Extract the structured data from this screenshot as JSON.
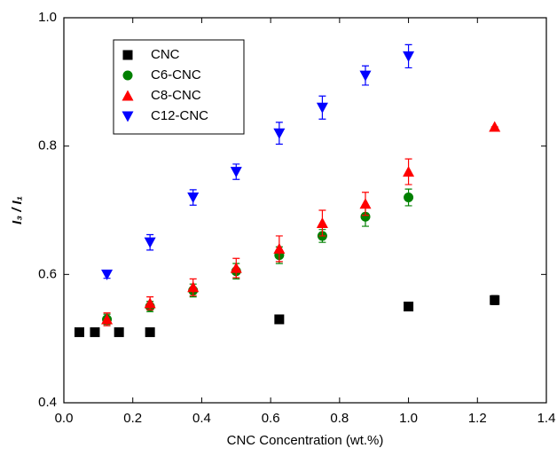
{
  "chart_data": {
    "type": "scatter",
    "xlabel": "CNC Concentration (wt.%)",
    "ylabel": "I₃ / I₁",
    "xlim": [
      0,
      1.4
    ],
    "ylim": [
      0.4,
      1.0
    ],
    "xticks": [
      {
        "value": 0,
        "label": "0.0"
      },
      0.2,
      0.4,
      0.6,
      0.8,
      {
        "value": 1,
        "label": "1.0"
      },
      1.2,
      1.4
    ],
    "yticks": [
      0.4,
      0.6,
      0.8,
      {
        "value": 1,
        "label": "1.0"
      }
    ],
    "legend": "upper-left",
    "series": [
      {
        "name": "CNC",
        "color": "#000000",
        "marker": "square",
        "x": [
          0.045,
          0.09,
          0.16,
          0.25,
          0.625,
          1.0,
          1.25
        ],
        "values": [
          0.51,
          0.51,
          0.51,
          0.51,
          0.53,
          0.55,
          0.56
        ],
        "errors": [
          0.003,
          0.003,
          0.003,
          0.003,
          0.005,
          0.004,
          0.007
        ]
      },
      {
        "name": "C6-CNC",
        "color": "#008000",
        "marker": "circle",
        "x": [
          0.125,
          0.25,
          0.375,
          0.5,
          0.625,
          0.75,
          0.875,
          1.0
        ],
        "values": [
          0.53,
          0.55,
          0.575,
          0.605,
          0.63,
          0.66,
          0.69,
          0.72
        ],
        "errors": [
          0.008,
          0.008,
          0.01,
          0.012,
          0.013,
          0.01,
          0.015,
          0.013
        ]
      },
      {
        "name": "C8-CNC",
        "color": "#ff0000",
        "marker": "triangle-up",
        "x": [
          0.125,
          0.25,
          0.375,
          0.5,
          0.625,
          0.75,
          0.875,
          1.0,
          1.25
        ],
        "values": [
          0.53,
          0.555,
          0.58,
          0.61,
          0.64,
          0.68,
          0.71,
          0.76,
          0.83
        ],
        "errors": [
          0.01,
          0.01,
          0.013,
          0.015,
          0.02,
          0.02,
          0.018,
          0.02,
          0
        ]
      },
      {
        "name": "C12-CNC",
        "color": "#0000ff",
        "marker": "triangle-down",
        "x": [
          0.125,
          0.25,
          0.375,
          0.5,
          0.625,
          0.75,
          0.875,
          1.0
        ],
        "values": [
          0.6,
          0.65,
          0.72,
          0.76,
          0.82,
          0.86,
          0.91,
          0.94
        ],
        "errors": [
          0.006,
          0.012,
          0.012,
          0.012,
          0.017,
          0.018,
          0.015,
          0.018
        ]
      }
    ]
  }
}
